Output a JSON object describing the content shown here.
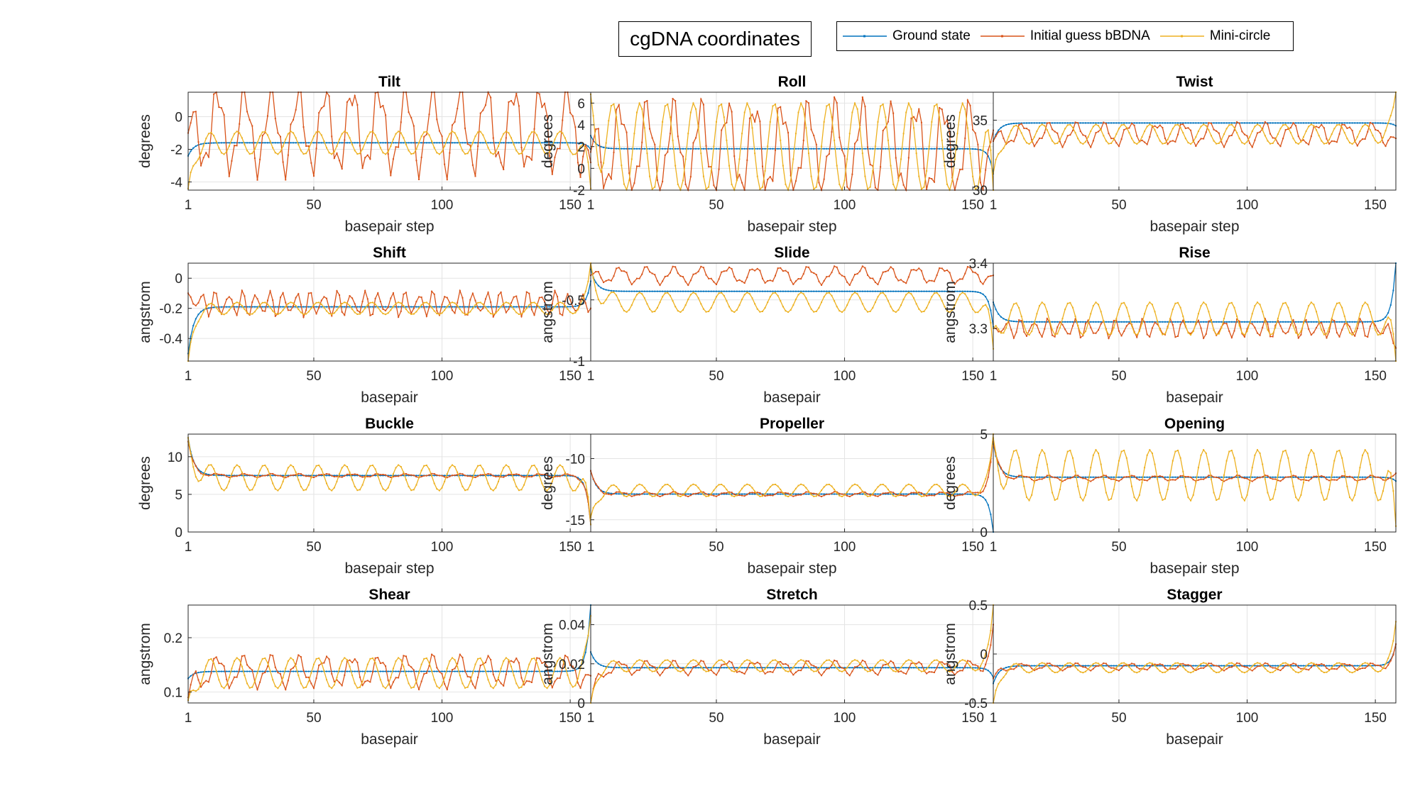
{
  "figure_title": "cgDNA coordinates",
  "legend": [
    {
      "name": "Ground state",
      "color": "#0072BD"
    },
    {
      "name": "Initial guess bBDNA",
      "color": "#D95319"
    },
    {
      "name": "Mini-circle",
      "color": "#EDB120"
    }
  ],
  "chart_data": [
    {
      "type": "line",
      "title": "Tilt",
      "xlabel": "basepair step",
      "ylabel": "degrees",
      "xlim": [
        1,
        158
      ],
      "ylim": [
        -4.5,
        1.5
      ],
      "yticks": [
        -4,
        -2,
        0
      ],
      "xticks": [
        1,
        50,
        100,
        150
      ],
      "grid": true,
      "series": [
        {
          "name": "Ground state",
          "values": {
            "start": -2.4,
            "plateau": -1.6,
            "end": -2.0,
            "amp": 0,
            "period": 1
          }
        },
        {
          "name": "Initial guess bBDNA",
          "values": {
            "start": -1.0,
            "plateau": -0.8,
            "end": -2.8,
            "amp": 2.3,
            "period": 10.5
          }
        },
        {
          "name": "Mini-circle",
          "values": {
            "start": -4.4,
            "plateau": -1.6,
            "end": -4.4,
            "amp": 0.7,
            "period": 10.5
          }
        }
      ]
    },
    {
      "type": "line",
      "title": "Roll",
      "xlabel": "basepair step",
      "ylabel": "degrees",
      "xlim": [
        1,
        158
      ],
      "ylim": [
        -2,
        7
      ],
      "yticks": [
        -2,
        0,
        2,
        4,
        6
      ],
      "xticks": [
        1,
        50,
        100,
        150
      ],
      "grid": true,
      "series": [
        {
          "name": "Ground state",
          "values": {
            "start": 3.0,
            "plateau": 1.8,
            "end": -0.5,
            "amp": 0,
            "period": 1
          }
        },
        {
          "name": "Initial guess bBDNA",
          "values": {
            "start": 1.5,
            "plateau": 1.8,
            "end": 3.5,
            "amp": 3.8,
            "period": 10.5
          }
        },
        {
          "name": "Mini-circle",
          "values": {
            "start": 6.8,
            "plateau": 2.0,
            "end": -2.0,
            "amp": 4.0,
            "period": 10.5
          }
        }
      ]
    },
    {
      "type": "line",
      "title": "Twist",
      "xlabel": "basepair step",
      "ylabel": "degrees",
      "xlim": [
        1,
        158
      ],
      "ylim": [
        30,
        37
      ],
      "yticks": [
        30,
        35
      ],
      "xticks": [
        1,
        50,
        100,
        150
      ],
      "grid": true,
      "series": [
        {
          "name": "Ground state",
          "values": {
            "start": 33.5,
            "plateau": 34.8,
            "end": 34.6,
            "amp": 0,
            "period": 1
          }
        },
        {
          "name": "Initial guess bBDNA",
          "values": {
            "start": 33.5,
            "plateau": 34.0,
            "end": 33.7,
            "amp": 0.7,
            "period": 10.5
          }
        },
        {
          "name": "Mini-circle",
          "values": {
            "start": 31.2,
            "plateau": 34.0,
            "end": 37.0,
            "amp": 0.7,
            "period": 10.5
          }
        }
      ]
    },
    {
      "type": "line",
      "title": "Shift",
      "xlabel": "basepair",
      "ylabel": "angstrom",
      "xlim": [
        1,
        158
      ],
      "ylim": [
        -0.55,
        0.1
      ],
      "yticks": [
        -0.4,
        -0.2,
        0
      ],
      "xticks": [
        1,
        50,
        100,
        150
      ],
      "grid": true,
      "series": [
        {
          "name": "Ground state",
          "values": {
            "start": -0.5,
            "plateau": -0.19,
            "end": -0.02,
            "amp": 0,
            "period": 1
          }
        },
        {
          "name": "Initial guess bBDNA",
          "values": {
            "start": -0.1,
            "plateau": -0.17,
            "end": -0.2,
            "amp": 0.07,
            "period": 5.3
          }
        },
        {
          "name": "Mini-circle",
          "values": {
            "start": -0.55,
            "plateau": -0.2,
            "end": 0.1,
            "amp": 0.04,
            "period": 10.5
          }
        }
      ]
    },
    {
      "type": "line",
      "title": "Slide",
      "xlabel": "basepair",
      "ylabel": "angstrom",
      "xlim": [
        1,
        158
      ],
      "ylim": [
        -1,
        -0.2
      ],
      "yticks": [
        -1,
        -0.5
      ],
      "xticks": [
        1,
        50,
        100,
        150
      ],
      "grid": true,
      "series": [
        {
          "name": "Ground state",
          "values": {
            "start": -0.25,
            "plateau": -0.43,
            "end": -0.72,
            "amp": 0,
            "period": 1
          }
        },
        {
          "name": "Initial guess bBDNA",
          "values": {
            "start": -0.3,
            "plateau": -0.3,
            "end": -0.3,
            "amp": 0.06,
            "period": 10.5
          }
        },
        {
          "name": "Mini-circle",
          "values": {
            "start": -0.2,
            "plateau": -0.52,
            "end": -0.9,
            "amp": 0.08,
            "period": 10.5
          }
        }
      ]
    },
    {
      "type": "line",
      "title": "Rise",
      "xlabel": "basepair",
      "ylabel": "angstrom",
      "xlim": [
        1,
        158
      ],
      "ylim": [
        3.25,
        3.4
      ],
      "yticks": [
        3.3,
        3.4
      ],
      "xticks": [
        1,
        50,
        100,
        150
      ],
      "grid": true,
      "series": [
        {
          "name": "Ground state",
          "values": {
            "start": 3.34,
            "plateau": 3.31,
            "end": 3.4,
            "amp": 0,
            "period": 1
          }
        },
        {
          "name": "Initial guess bBDNA",
          "values": {
            "start": 3.3,
            "plateau": 3.3,
            "end": 3.27,
            "amp": 0.012,
            "period": 5.3
          }
        },
        {
          "name": "Mini-circle",
          "values": {
            "start": 3.3,
            "plateau": 3.315,
            "end": 3.25,
            "amp": 0.025,
            "period": 10.5
          }
        }
      ]
    },
    {
      "type": "line",
      "title": "Buckle",
      "xlabel": "basepair step",
      "ylabel": "degrees",
      "xlim": [
        1,
        158
      ],
      "ylim": [
        0,
        13
      ],
      "yticks": [
        0,
        5,
        10
      ],
      "xticks": [
        1,
        50,
        100,
        150
      ],
      "grid": true,
      "series": [
        {
          "name": "Ground state",
          "values": {
            "start": 12.5,
            "plateau": 7.5,
            "end": 1.0,
            "amp": 0,
            "period": 1
          }
        },
        {
          "name": "Initial guess bBDNA",
          "values": {
            "start": 12.0,
            "plateau": 7.5,
            "end": 1.0,
            "amp": 0.2,
            "period": 10.5
          }
        },
        {
          "name": "Mini-circle",
          "values": {
            "start": 12.5,
            "plateau": 7.2,
            "end": 1.0,
            "amp": 1.7,
            "period": 10.5
          }
        }
      ]
    },
    {
      "type": "line",
      "title": "Propeller",
      "xlabel": "basepair step",
      "ylabel": "degrees",
      "xlim": [
        1,
        158
      ],
      "ylim": [
        -16,
        -8
      ],
      "yticks": [
        -15,
        -10
      ],
      "xticks": [
        1,
        50,
        100,
        150
      ],
      "grid": true,
      "series": [
        {
          "name": "Ground state",
          "values": {
            "start": -11.0,
            "plateau": -12.9,
            "end": -16.0,
            "amp": 0,
            "period": 1
          }
        },
        {
          "name": "Initial guess bBDNA",
          "values": {
            "start": -11.0,
            "plateau": -12.9,
            "end": -8.0,
            "amp": 0.15,
            "period": 10.5
          }
        },
        {
          "name": "Mini-circle",
          "values": {
            "start": -14.8,
            "plateau": -12.6,
            "end": -8.0,
            "amp": 0.5,
            "period": 10.5
          }
        }
      ]
    },
    {
      "type": "line",
      "title": "Opening",
      "xlabel": "basepair step",
      "ylabel": "degrees",
      "xlim": [
        1,
        158
      ],
      "ylim": [
        0,
        5
      ],
      "yticks": [
        0,
        5
      ],
      "xticks": [
        1,
        50,
        100,
        150
      ],
      "grid": true,
      "series": [
        {
          "name": "Ground state",
          "values": {
            "start": 4.5,
            "plateau": 2.8,
            "end": 2.6,
            "amp": 0,
            "period": 1
          }
        },
        {
          "name": "Initial guess bBDNA",
          "values": {
            "start": 4.6,
            "plateau": 2.75,
            "end": 3.0,
            "amp": 0.12,
            "period": 10.5
          }
        },
        {
          "name": "Mini-circle",
          "values": {
            "start": 4.8,
            "plateau": 2.9,
            "end": 0.3,
            "amp": 1.3,
            "period": 10.5
          }
        }
      ]
    },
    {
      "type": "line",
      "title": "Shear",
      "xlabel": "basepair",
      "ylabel": "angstrom",
      "xlim": [
        1,
        158
      ],
      "ylim": [
        0.08,
        0.26
      ],
      "yticks": [
        0.1,
        0.2
      ],
      "xticks": [
        1,
        50,
        100,
        150
      ],
      "grid": true,
      "series": [
        {
          "name": "Ground state",
          "values": {
            "start": 0.125,
            "plateau": 0.138,
            "end": 0.26,
            "amp": 0,
            "period": 1
          }
        },
        {
          "name": "Initial guess bBDNA",
          "values": {
            "start": 0.09,
            "plateau": 0.138,
            "end": 0.13,
            "amp": 0.025,
            "period": 10.5
          }
        },
        {
          "name": "Mini-circle",
          "values": {
            "start": 0.085,
            "plateau": 0.135,
            "end": 0.24,
            "amp": 0.028,
            "period": 10.5
          }
        }
      ]
    },
    {
      "type": "line",
      "title": "Stretch",
      "xlabel": "basepair",
      "ylabel": "angstrom",
      "xlim": [
        1,
        158
      ],
      "ylim": [
        0,
        0.05
      ],
      "yticks": [
        0,
        0.02,
        0.04
      ],
      "xticks": [
        1,
        50,
        100,
        150
      ],
      "grid": true,
      "series": [
        {
          "name": "Ground state",
          "values": {
            "start": 0.026,
            "plateau": 0.018,
            "end": 0.013,
            "amp": 0,
            "period": 1
          }
        },
        {
          "name": "Initial guess bBDNA",
          "values": {
            "start": 0.0,
            "plateau": 0.018,
            "end": 0.04,
            "amp": 0.003,
            "period": 10.5
          }
        },
        {
          "name": "Mini-circle",
          "values": {
            "start": 0.0,
            "plateau": 0.019,
            "end": 0.05,
            "amp": 0.003,
            "period": 10.5
          }
        }
      ]
    },
    {
      "type": "line",
      "title": "Stagger",
      "xlabel": "basepair",
      "ylabel": "angstrom",
      "xlim": [
        1,
        158
      ],
      "ylim": [
        -0.5,
        0.5
      ],
      "yticks": [
        -0.5,
        0,
        0.5
      ],
      "xticks": [
        1,
        50,
        100,
        150
      ],
      "grid": true,
      "series": [
        {
          "name": "Ground state",
          "values": {
            "start": -0.3,
            "plateau": -0.12,
            "end": 0.1,
            "amp": 0,
            "period": 1
          }
        },
        {
          "name": "Initial guess bBDNA",
          "values": {
            "start": -0.25,
            "plateau": -0.13,
            "end": 0.1,
            "amp": 0.03,
            "period": 10.5
          }
        },
        {
          "name": "Mini-circle",
          "values": {
            "start": -0.5,
            "plateau": -0.14,
            "end": 0.33,
            "amp": 0.05,
            "period": 10.5
          }
        }
      ]
    }
  ]
}
